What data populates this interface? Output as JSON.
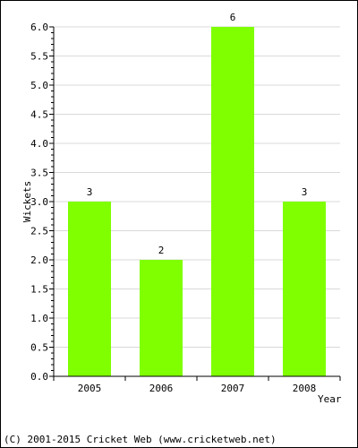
{
  "chart_data": {
    "type": "bar",
    "categories": [
      "2005",
      "2006",
      "2007",
      "2008"
    ],
    "values": [
      3,
      2,
      6,
      3
    ],
    "data_labels": [
      "3",
      "2",
      "6",
      "3"
    ],
    "xlabel": "Year",
    "ylabel": "Wickets",
    "ylim": [
      0,
      6.0
    ],
    "yticks": [
      0,
      0.5,
      1.0,
      1.5,
      2.0,
      2.5,
      3.0,
      3.5,
      4.0,
      4.5,
      5.0,
      5.5,
      6.0
    ],
    "ytick_labels": [
      "0.0",
      "0.5",
      "1.0",
      "1.5",
      "2.0",
      "2.5",
      "3.0",
      "3.5",
      "4.0",
      "4.5",
      "5.0",
      "5.5",
      "6.0"
    ],
    "grid": true,
    "bar_color": "#7fff00"
  },
  "footer": "(C) 2001-2015 Cricket Web (www.cricketweb.net)"
}
